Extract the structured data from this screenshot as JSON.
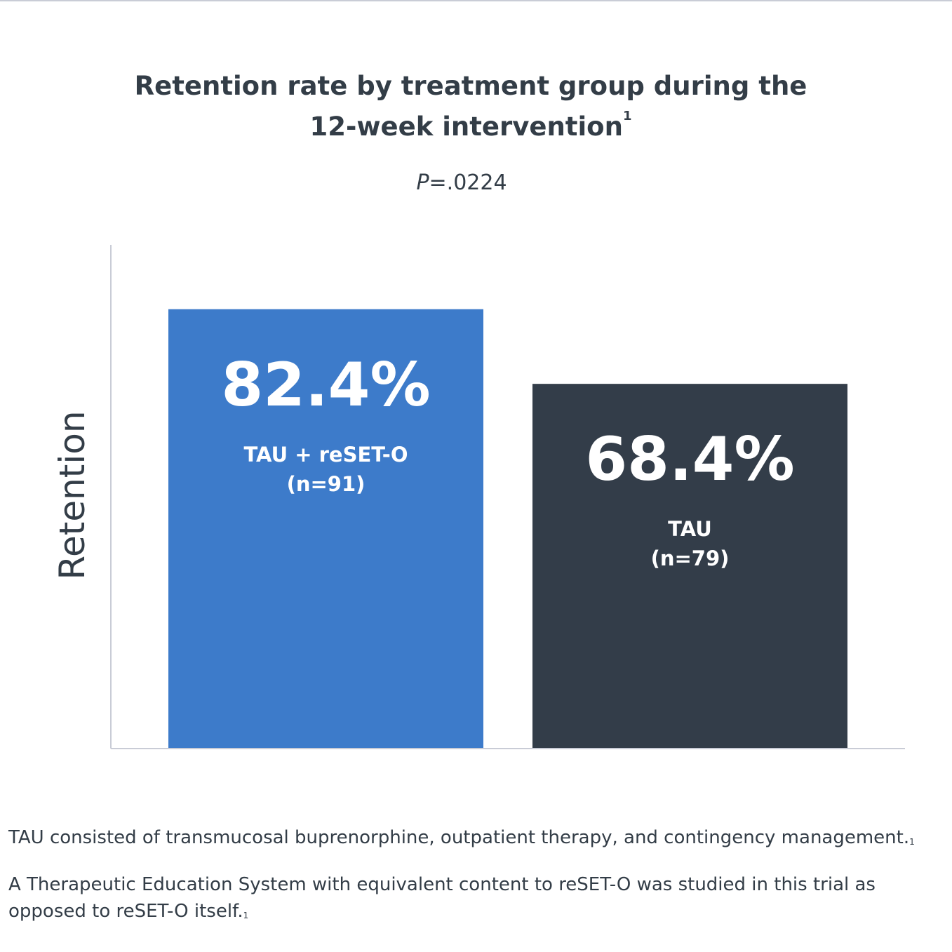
{
  "chart_data": {
    "type": "bar",
    "title_line1": "Retention rate by treatment group during the",
    "title_line2": "12-week intervention",
    "title_sup": "1",
    "subtitle_italic": "P",
    "subtitle_rest": "=.0224",
    "ylabel": "Retention",
    "xlabel": "",
    "categories": [
      "TAU + reSET-O",
      "TAU"
    ],
    "category_counts": [
      "(n=91)",
      "(n=79)"
    ],
    "values": [
      82.4,
      68.4
    ],
    "value_labels": [
      "82.4%",
      "68.4%"
    ],
    "bar_colors": [
      "#3d7bca",
      "#333d49"
    ],
    "axis_color": "#c9ccd6",
    "ylim": [
      0,
      100
    ],
    "grid": false
  },
  "footnotes": {
    "note1": "TAU consisted of transmucosal buprenorphine, outpatient therapy, and contingency management.",
    "note1_sup": "1",
    "note2": "A Therapeutic Education System with equivalent content to reSET-O was studied in this trial as opposed to reSET-O itself.",
    "note2_sup": "1"
  }
}
